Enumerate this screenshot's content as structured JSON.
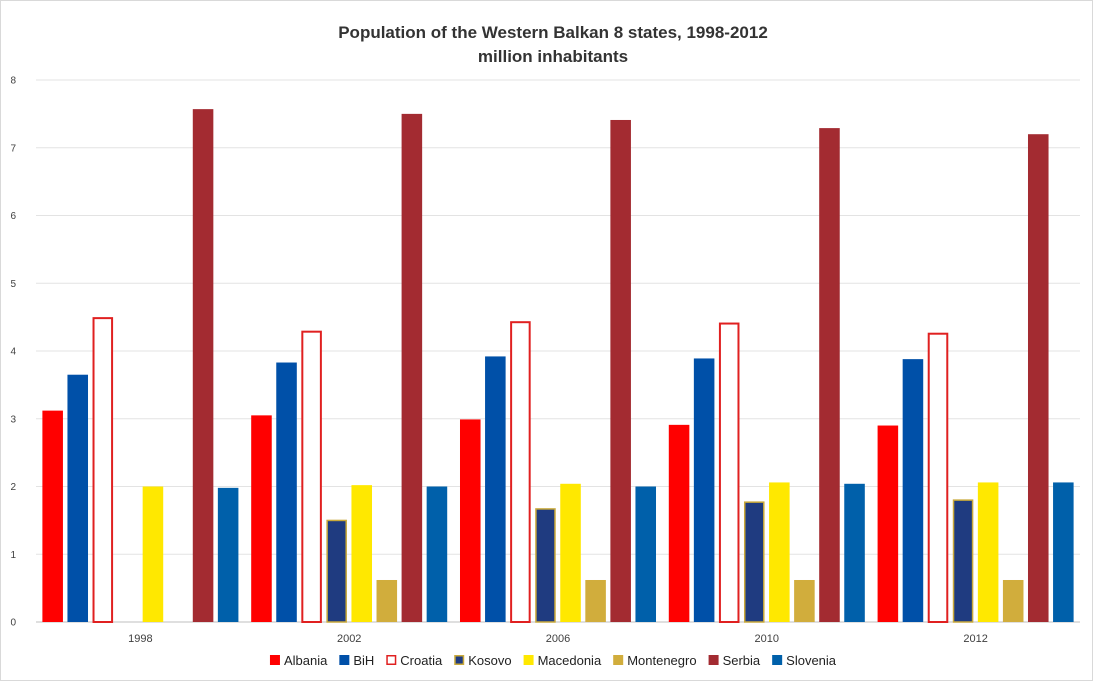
{
  "chart_data": {
    "type": "bar",
    "title": "Population of the Western Balkan 8 states, 1998-2012",
    "subtitle": "million inhabitants",
    "xlabel": "",
    "ylabel": "",
    "ylim": [
      0,
      8
    ],
    "yticks": [
      "0",
      "1",
      "2",
      "3",
      "4",
      "5",
      "6",
      "7",
      "8"
    ],
    "grid": true,
    "legend_position": "bottom",
    "categories": [
      "1998",
      "2002",
      "2006",
      "2010",
      "2012"
    ],
    "series": [
      {
        "name": "Albania",
        "color": "#ff0000",
        "style": "solid",
        "values": [
          3.12,
          3.05,
          2.99,
          2.91,
          2.9
        ]
      },
      {
        "name": "BiH",
        "color": "#0050a8",
        "style": "solid",
        "values": [
          3.65,
          3.83,
          3.92,
          3.89,
          3.88
        ]
      },
      {
        "name": "Croatia",
        "color": "#e02020",
        "style": "outline",
        "values": [
          4.5,
          4.3,
          4.44,
          4.42,
          4.27
        ]
      },
      {
        "name": "Kosovo",
        "color": "#1f3b80",
        "style": "kosovo",
        "values": [
          null,
          1.51,
          1.68,
          1.78,
          1.81
        ]
      },
      {
        "name": "Macedonia",
        "color": "#ffe800",
        "style": "solid",
        "values": [
          2.0,
          2.02,
          2.04,
          2.06,
          2.06
        ]
      },
      {
        "name": "Montenegro",
        "color": "#d1ad3c",
        "style": "solid",
        "values": [
          null,
          0.62,
          0.62,
          0.62,
          0.62
        ]
      },
      {
        "name": "Serbia",
        "color": "#a32b31",
        "style": "solid",
        "values": [
          7.57,
          7.5,
          7.41,
          7.29,
          7.2
        ]
      },
      {
        "name": "Slovenia",
        "color": "#0060aa",
        "style": "solid",
        "values": [
          1.98,
          2.0,
          2.0,
          2.04,
          2.06
        ]
      }
    ]
  }
}
